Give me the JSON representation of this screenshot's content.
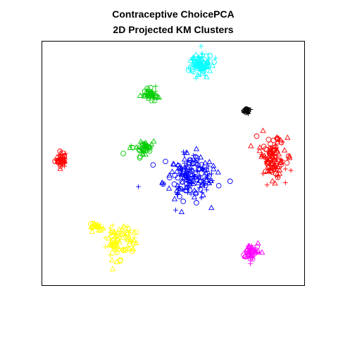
{
  "chart_data": {
    "type": "scatter",
    "title": "Contraceptive ChoicePCA\n2D Projected KM Clusters",
    "title_lines": [
      "Contraceptive ChoicePCA",
      "2D Projected KM Clusters"
    ],
    "xlabel": "",
    "ylabel": "",
    "axes_shown": false,
    "xlim": [
      0,
      100
    ],
    "ylim": [
      0,
      100
    ],
    "grid": false,
    "legend": "none",
    "markers": [
      "circle",
      "triangle",
      "plus"
    ],
    "series": [
      {
        "color": "#FF0000",
        "clusters": [
          {
            "cx": 7.2,
            "cy": 51.7,
            "sx": 1.4,
            "sy": 2.0,
            "n": 40
          },
          {
            "cx": 88.0,
            "cy": 52.0,
            "sx": 3.0,
            "sy": 5.6,
            "n": 120
          }
        ]
      },
      {
        "color": "#00CC00",
        "clusters": [
          {
            "cx": 41.5,
            "cy": 78.5,
            "sx": 2.2,
            "sy": 1.4,
            "n": 40
          },
          {
            "cx": 38.0,
            "cy": 56.5,
            "sx": 2.6,
            "sy": 2.0,
            "n": 40
          }
        ]
      },
      {
        "color": "#0000FF",
        "clusters": [
          {
            "cx": 56.0,
            "cy": 44.5,
            "sx": 6.0,
            "sy": 6.0,
            "n": 180
          }
        ]
      },
      {
        "color": "#00FFFF",
        "clusters": [
          {
            "cx": 60.0,
            "cy": 90.5,
            "sx": 3.0,
            "sy": 3.0,
            "n": 90
          }
        ]
      },
      {
        "color": "#FF00FF",
        "clusters": [
          {
            "cx": 79.5,
            "cy": 14.0,
            "sx": 2.0,
            "sy": 2.2,
            "n": 50
          }
        ]
      },
      {
        "color": "#FFFF00",
        "clusters": [
          {
            "cx": 20.5,
            "cy": 24.5,
            "sx": 1.6,
            "sy": 0.9,
            "n": 25
          },
          {
            "cx": 27.5,
            "cy": 17.0,
            "sx": 2.4,
            "sy": 4.6,
            "n": 50
          },
          {
            "cx": 33.0,
            "cy": 19.0,
            "sx": 2.0,
            "sy": 4.0,
            "n": 35
          }
        ]
      },
      {
        "color": "#000000",
        "clusters": [
          {
            "cx": 78.0,
            "cy": 71.5,
            "sx": 0.9,
            "sy": 0.7,
            "n": 15
          }
        ]
      }
    ]
  }
}
